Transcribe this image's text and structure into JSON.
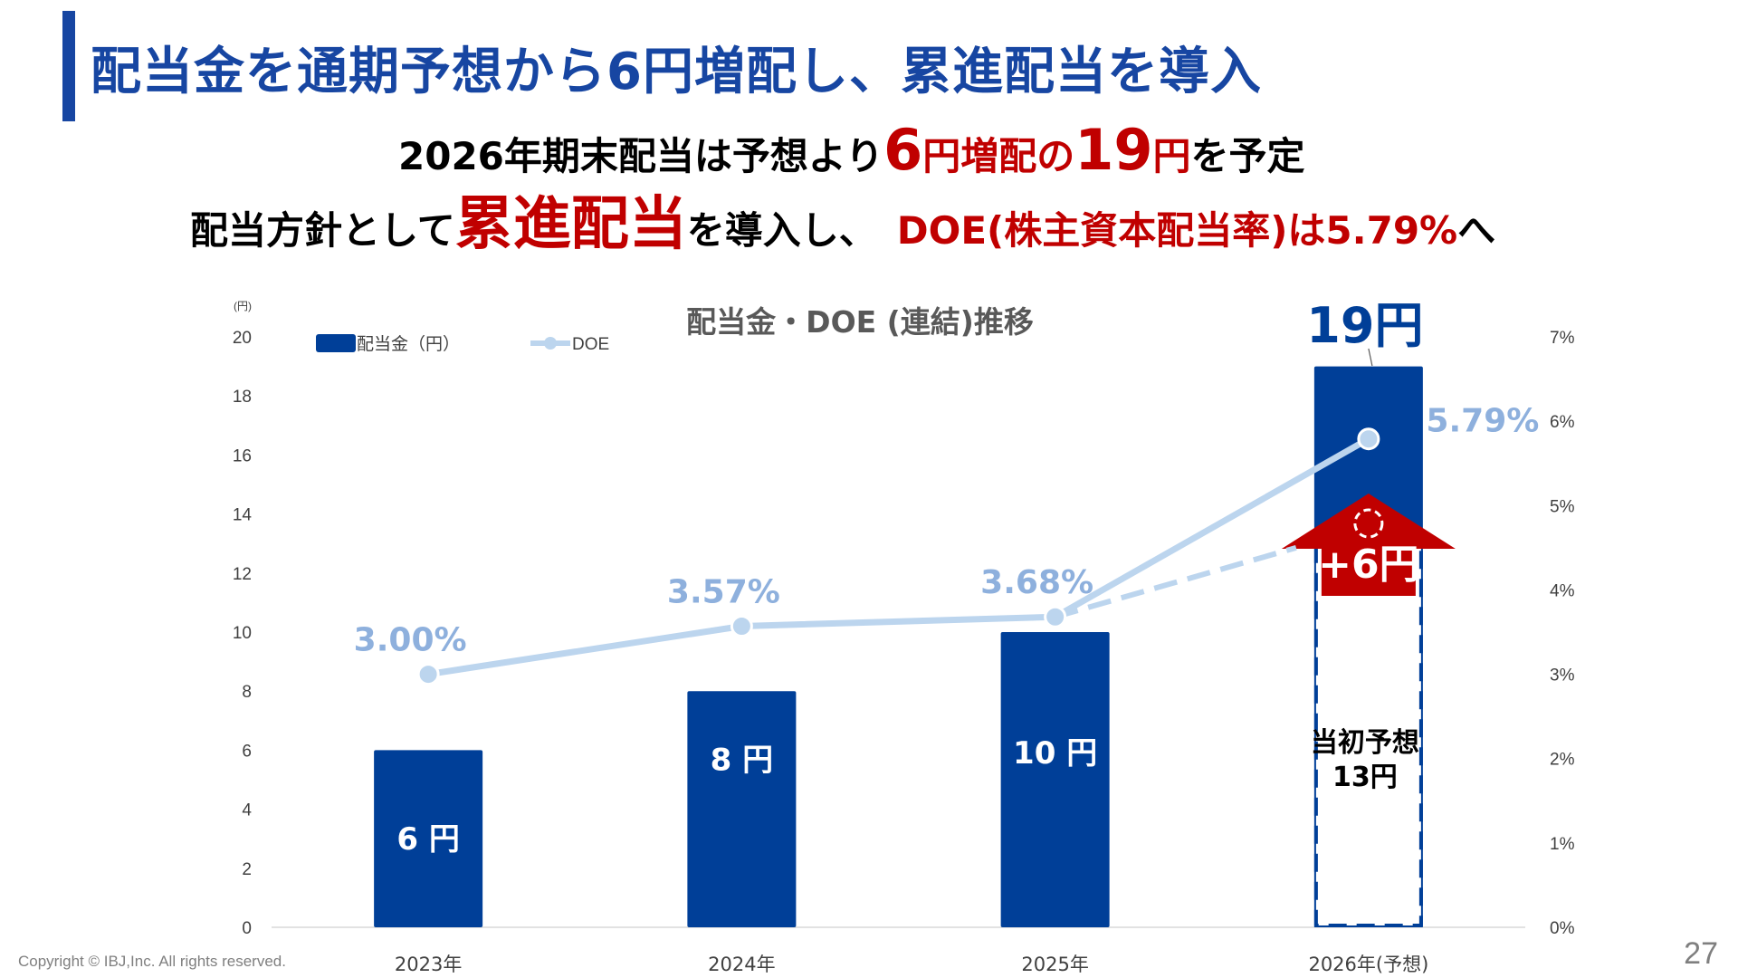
{
  "title": "配当金を通期予想から6円増配し、累進配当を導入",
  "subtitle1": {
    "prefix": "2026年期末配当は予想より",
    "num1": "6",
    "unit1": "円増配の",
    "num2": "19",
    "unit2": "円",
    "suffix": "を予定"
  },
  "subtitle2": {
    "prefix": "配当方針として",
    "highlight": "累進配当",
    "mid": "を導入し、",
    "doe": "DOE(株主資本配当率)は5.79%",
    "suffix": "へ"
  },
  "footer": {
    "copyright": "Copyright © IBJ,Inc. All rights reserved.",
    "page": "27"
  },
  "colors": {
    "bar": "#003f98",
    "line": "#bcd5ee",
    "doe_label": "#8eb0dd",
    "accent_red": "#c00000",
    "title": "#1746a2"
  },
  "chart_data": {
    "type": "bar",
    "title": "配当金・DOE (連結)推移",
    "y_unit_label": "(円)",
    "categories": [
      "2023年",
      "2024年",
      "2025年",
      "2026年(予想)"
    ],
    "ylim": [
      0,
      20
    ],
    "y_ticks": [
      "0",
      "2",
      "4",
      "6",
      "8",
      "10",
      "12",
      "14",
      "16",
      "18",
      "20"
    ],
    "y2lim": [
      0,
      7
    ],
    "y2_ticks": [
      "0%",
      "1%",
      "2%",
      "3%",
      "4%",
      "5%",
      "6%",
      "7%"
    ],
    "legend": [
      {
        "name": "配当金（円）",
        "kind": "bar"
      },
      {
        "name": "DOE",
        "kind": "line"
      }
    ],
    "series": [
      {
        "name": "配当金（円）",
        "values": [
          6,
          8,
          10,
          19
        ],
        "labels": [
          "6 円",
          "8 円",
          "10 円",
          "19円"
        ]
      },
      {
        "name": "DOE",
        "values": [
          3.0,
          3.57,
          3.68,
          5.79
        ],
        "labels": [
          "3.00%",
          "3.57%",
          "3.68%",
          "5.79%"
        ]
      }
    ],
    "initial_forecast": {
      "value": 13,
      "label_line1": "当初予想",
      "label_line2": "13円"
    },
    "increase_label": "+6円"
  }
}
